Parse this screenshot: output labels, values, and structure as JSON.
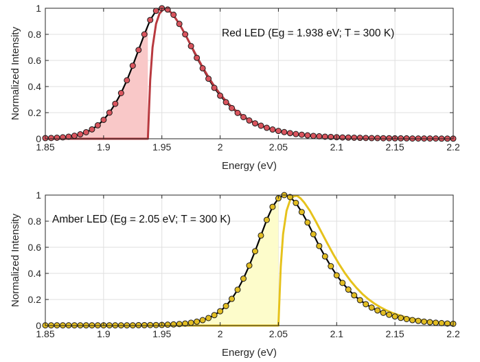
{
  "chart_data": [
    {
      "type": "line",
      "title": "",
      "annotation": "Red LED (Eg = 1.938 eV; T = 300 K)",
      "xlabel": "Energy (eV)",
      "ylabel": "Normalized Intensity",
      "xlim": [
        1.85,
        2.2
      ],
      "ylim": [
        0,
        1
      ],
      "x_ticks": [
        "1.85",
        "1.9",
        "1.95",
        "2",
        "2.05",
        "2.1",
        "2.15",
        "2.2"
      ],
      "y_ticks": [
        "0",
        "0.2",
        "0.4",
        "0.6",
        "0.8",
        "1"
      ],
      "grid": true,
      "colors": {
        "fill": "#f9c8c8",
        "model": "#b8393f",
        "marker": "#d9545d",
        "measured": "#000000"
      },
      "band_gap": 1.938,
      "series": [
        {
          "kind": "measured",
          "x": [
            1.85,
            1.855,
            1.86,
            1.865,
            1.87,
            1.875,
            1.88,
            1.885,
            1.89,
            1.895,
            1.9,
            1.905,
            1.91,
            1.915,
            1.92,
            1.925,
            1.93,
            1.935,
            1.94,
            1.945,
            1.95,
            1.955,
            1.96,
            1.965,
            1.97,
            1.975,
            1.98,
            1.985,
            1.99,
            1.995,
            2.0,
            2.005,
            2.01,
            2.015,
            2.02,
            2.025,
            2.03,
            2.035,
            2.04,
            2.045,
            2.05,
            2.055,
            2.06,
            2.065,
            2.07,
            2.075,
            2.08,
            2.085,
            2.09,
            2.095,
            2.1,
            2.105,
            2.11,
            2.115,
            2.12,
            2.125,
            2.13,
            2.135,
            2.14,
            2.145,
            2.15,
            2.155,
            2.16,
            2.165,
            2.17,
            2.175,
            2.18,
            2.185,
            2.19,
            2.195,
            2.2
          ],
          "y": [
            0.005,
            0.006,
            0.008,
            0.011,
            0.016,
            0.023,
            0.034,
            0.05,
            0.072,
            0.103,
            0.145,
            0.2,
            0.268,
            0.35,
            0.448,
            0.56,
            0.68,
            0.8,
            0.91,
            0.98,
            1.0,
            0.99,
            0.95,
            0.88,
            0.8,
            0.71,
            0.62,
            0.54,
            0.46,
            0.39,
            0.33,
            0.28,
            0.235,
            0.198,
            0.166,
            0.14,
            0.118,
            0.1,
            0.084,
            0.071,
            0.06,
            0.051,
            0.043,
            0.036,
            0.031,
            0.026,
            0.022,
            0.019,
            0.016,
            0.014,
            0.012,
            0.01,
            0.009,
            0.008,
            0.007,
            0.006,
            0.005,
            0.005,
            0.004,
            0.004,
            0.003,
            0.003,
            0.003,
            0.002,
            0.002,
            0.002,
            0.002,
            0.002,
            0.001,
            0.001,
            0.001
          ]
        },
        {
          "kind": "model",
          "x": [
            1.938,
            1.94,
            1.942,
            1.945,
            1.948,
            1.951,
            1.954,
            1.957,
            1.96,
            1.965,
            1.97,
            1.975,
            1.98,
            1.985,
            1.99,
            1.995,
            2.0,
            2.005,
            2.01,
            2.015,
            2.02,
            2.025,
            2.03,
            2.035,
            2.04,
            2.045,
            2.05,
            2.06,
            2.07,
            2.08,
            2.09,
            2.1,
            2.12,
            2.14,
            2.16,
            2.18,
            2.2
          ],
          "y": [
            0,
            0.45,
            0.7,
            0.88,
            0.96,
            0.99,
            0.995,
            0.975,
            0.945,
            0.88,
            0.8,
            0.715,
            0.63,
            0.548,
            0.472,
            0.403,
            0.342,
            0.289,
            0.243,
            0.204,
            0.171,
            0.143,
            0.12,
            0.1,
            0.084,
            0.07,
            0.058,
            0.04,
            0.028,
            0.02,
            0.014,
            0.01,
            0.005,
            0.003,
            0.002,
            0.001,
            0.001
          ]
        }
      ]
    },
    {
      "type": "line",
      "title": "",
      "annotation": "Amber LED (Eg = 2.05 eV; T = 300 K)",
      "xlabel": "Energy (eV)",
      "ylabel": "Normalized Intensity",
      "xlim": [
        1.85,
        2.2
      ],
      "ylim": [
        0,
        1
      ],
      "x_ticks": [
        "1.85",
        "1.9",
        "1.95",
        "2",
        "2.05",
        "2.1",
        "2.15",
        "2.2"
      ],
      "y_ticks": [
        "0",
        "0.2",
        "0.4",
        "0.6",
        "0.8",
        "1"
      ],
      "grid": true,
      "colors": {
        "fill": "#fdfccb",
        "model": "#e6c21c",
        "marker": "#e2bd22",
        "measured": "#000000"
      },
      "band_gap": 2.05,
      "series": [
        {
          "kind": "measured",
          "x": [
            1.85,
            1.855,
            1.86,
            1.865,
            1.87,
            1.875,
            1.88,
            1.885,
            1.89,
            1.895,
            1.9,
            1.905,
            1.91,
            1.915,
            1.92,
            1.925,
            1.93,
            1.935,
            1.94,
            1.945,
            1.95,
            1.955,
            1.96,
            1.965,
            1.97,
            1.975,
            1.98,
            1.985,
            1.99,
            1.995,
            2.0,
            2.005,
            2.01,
            2.015,
            2.02,
            2.025,
            2.03,
            2.035,
            2.04,
            2.045,
            2.05,
            2.055,
            2.06,
            2.065,
            2.07,
            2.075,
            2.08,
            2.085,
            2.09,
            2.095,
            2.1,
            2.105,
            2.11,
            2.115,
            2.12,
            2.125,
            2.13,
            2.135,
            2.14,
            2.145,
            2.15,
            2.155,
            2.16,
            2.165,
            2.17,
            2.175,
            2.18,
            2.185,
            2.19,
            2.195,
            2.2
          ],
          "y": [
            0.002,
            0.002,
            0.002,
            0.002,
            0.002,
            0.002,
            0.002,
            0.002,
            0.002,
            0.002,
            0.002,
            0.002,
            0.002,
            0.002,
            0.002,
            0.002,
            0.003,
            0.003,
            0.004,
            0.004,
            0.005,
            0.007,
            0.009,
            0.012,
            0.016,
            0.022,
            0.03,
            0.042,
            0.058,
            0.08,
            0.11,
            0.15,
            0.205,
            0.275,
            0.36,
            0.46,
            0.57,
            0.69,
            0.81,
            0.91,
            0.975,
            1.0,
            0.985,
            0.94,
            0.87,
            0.79,
            0.7,
            0.61,
            0.53,
            0.455,
            0.385,
            0.327,
            0.276,
            0.232,
            0.195,
            0.164,
            0.138,
            0.116,
            0.098,
            0.083,
            0.07,
            0.059,
            0.05,
            0.042,
            0.036,
            0.03,
            0.026,
            0.022,
            0.019,
            0.016,
            0.014
          ]
        },
        {
          "kind": "model",
          "x": [
            2.05,
            2.052,
            2.054,
            2.057,
            2.06,
            2.063,
            2.066,
            2.069,
            2.072,
            2.077,
            2.082,
            2.087,
            2.092,
            2.097,
            2.102,
            2.107,
            2.112,
            2.117,
            2.122,
            2.127,
            2.132,
            2.137,
            2.142,
            2.147,
            2.152,
            2.157,
            2.162,
            2.17,
            2.18,
            2.19,
            2.2
          ],
          "y": [
            0,
            0.45,
            0.7,
            0.88,
            0.96,
            0.99,
            0.995,
            0.975,
            0.945,
            0.88,
            0.8,
            0.715,
            0.63,
            0.548,
            0.472,
            0.403,
            0.342,
            0.289,
            0.243,
            0.204,
            0.171,
            0.143,
            0.12,
            0.1,
            0.084,
            0.07,
            0.058,
            0.045,
            0.032,
            0.023,
            0.017
          ]
        }
      ]
    }
  ]
}
